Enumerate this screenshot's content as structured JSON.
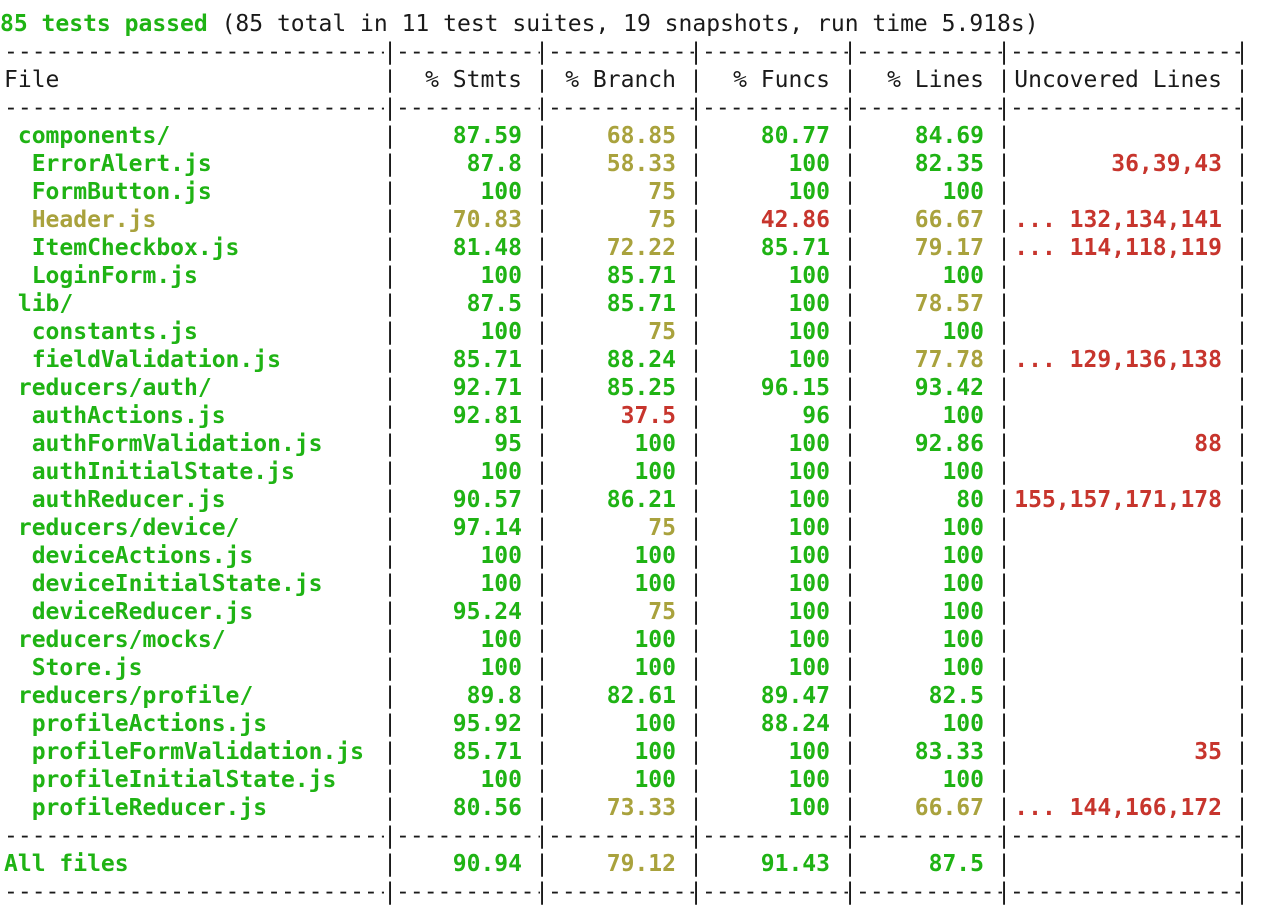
{
  "summary": {
    "passed": "85 tests passed",
    "details": " (85 total in 11 test suites, 19 snapshots, run time 5.918s)"
  },
  "table": {
    "headers": [
      "File",
      "% Stmts",
      "% Branch",
      "% Funcs",
      "% Lines",
      "Uncovered Lines"
    ],
    "rows": [
      {
        "file": " components/",
        "stmts": "87.59",
        "branch": "68.85",
        "funcs": "80.77",
        "lines": "84.69",
        "uncovered": "",
        "c": [
          "green",
          "green",
          "yellow",
          "green",
          "green",
          "red"
        ]
      },
      {
        "file": "  ErrorAlert.js",
        "stmts": "87.8",
        "branch": "58.33",
        "funcs": "100",
        "lines": "82.35",
        "uncovered": "36,39,43",
        "c": [
          "green",
          "green",
          "yellow",
          "green",
          "green",
          "red"
        ]
      },
      {
        "file": "  FormButton.js",
        "stmts": "100",
        "branch": "75",
        "funcs": "100",
        "lines": "100",
        "uncovered": "",
        "c": [
          "green",
          "green",
          "yellow",
          "green",
          "green",
          "red"
        ]
      },
      {
        "file": "  Header.js",
        "stmts": "70.83",
        "branch": "75",
        "funcs": "42.86",
        "lines": "66.67",
        "uncovered": "... 132,134,141",
        "c": [
          "yellow",
          "yellow",
          "yellow",
          "red",
          "yellow",
          "red"
        ]
      },
      {
        "file": "  ItemCheckbox.js",
        "stmts": "81.48",
        "branch": "72.22",
        "funcs": "85.71",
        "lines": "79.17",
        "uncovered": "... 114,118,119",
        "c": [
          "green",
          "green",
          "yellow",
          "green",
          "yellow",
          "red"
        ]
      },
      {
        "file": "  LoginForm.js",
        "stmts": "100",
        "branch": "85.71",
        "funcs": "100",
        "lines": "100",
        "uncovered": "",
        "c": [
          "green",
          "green",
          "green",
          "green",
          "green",
          "red"
        ]
      },
      {
        "file": " lib/",
        "stmts": "87.5",
        "branch": "85.71",
        "funcs": "100",
        "lines": "78.57",
        "uncovered": "",
        "c": [
          "green",
          "green",
          "green",
          "green",
          "yellow",
          "red"
        ]
      },
      {
        "file": "  constants.js",
        "stmts": "100",
        "branch": "75",
        "funcs": "100",
        "lines": "100",
        "uncovered": "",
        "c": [
          "green",
          "green",
          "yellow",
          "green",
          "green",
          "red"
        ]
      },
      {
        "file": "  fieldValidation.js",
        "stmts": "85.71",
        "branch": "88.24",
        "funcs": "100",
        "lines": "77.78",
        "uncovered": "... 129,136,138",
        "c": [
          "green",
          "green",
          "green",
          "green",
          "yellow",
          "red"
        ]
      },
      {
        "file": " reducers/auth/",
        "stmts": "92.71",
        "branch": "85.25",
        "funcs": "96.15",
        "lines": "93.42",
        "uncovered": "",
        "c": [
          "green",
          "green",
          "green",
          "green",
          "green",
          "red"
        ]
      },
      {
        "file": "  authActions.js",
        "stmts": "92.81",
        "branch": "37.5",
        "funcs": "96",
        "lines": "100",
        "uncovered": "",
        "c": [
          "green",
          "green",
          "red",
          "green",
          "green",
          "red"
        ]
      },
      {
        "file": "  authFormValidation.js",
        "stmts": "95",
        "branch": "100",
        "funcs": "100",
        "lines": "92.86",
        "uncovered": "88",
        "c": [
          "green",
          "green",
          "green",
          "green",
          "green",
          "red"
        ]
      },
      {
        "file": "  authInitialState.js",
        "stmts": "100",
        "branch": "100",
        "funcs": "100",
        "lines": "100",
        "uncovered": "",
        "c": [
          "green",
          "green",
          "green",
          "green",
          "green",
          "red"
        ]
      },
      {
        "file": "  authReducer.js",
        "stmts": "90.57",
        "branch": "86.21",
        "funcs": "100",
        "lines": "80",
        "uncovered": "155,157,171,178",
        "c": [
          "green",
          "green",
          "green",
          "green",
          "green",
          "red"
        ]
      },
      {
        "file": " reducers/device/",
        "stmts": "97.14",
        "branch": "75",
        "funcs": "100",
        "lines": "100",
        "uncovered": "",
        "c": [
          "green",
          "green",
          "yellow",
          "green",
          "green",
          "red"
        ]
      },
      {
        "file": "  deviceActions.js",
        "stmts": "100",
        "branch": "100",
        "funcs": "100",
        "lines": "100",
        "uncovered": "",
        "c": [
          "green",
          "green",
          "green",
          "green",
          "green",
          "red"
        ]
      },
      {
        "file": "  deviceInitialState.js",
        "stmts": "100",
        "branch": "100",
        "funcs": "100",
        "lines": "100",
        "uncovered": "",
        "c": [
          "green",
          "green",
          "green",
          "green",
          "green",
          "red"
        ]
      },
      {
        "file": "  deviceReducer.js",
        "stmts": "95.24",
        "branch": "75",
        "funcs": "100",
        "lines": "100",
        "uncovered": "",
        "c": [
          "green",
          "green",
          "yellow",
          "green",
          "green",
          "red"
        ]
      },
      {
        "file": " reducers/mocks/",
        "stmts": "100",
        "branch": "100",
        "funcs": "100",
        "lines": "100",
        "uncovered": "",
        "c": [
          "green",
          "green",
          "green",
          "green",
          "green",
          "red"
        ]
      },
      {
        "file": "  Store.js",
        "stmts": "100",
        "branch": "100",
        "funcs": "100",
        "lines": "100",
        "uncovered": "",
        "c": [
          "green",
          "green",
          "green",
          "green",
          "green",
          "red"
        ]
      },
      {
        "file": " reducers/profile/",
        "stmts": "89.8",
        "branch": "82.61",
        "funcs": "89.47",
        "lines": "82.5",
        "uncovered": "",
        "c": [
          "green",
          "green",
          "green",
          "green",
          "green",
          "red"
        ]
      },
      {
        "file": "  profileActions.js",
        "stmts": "95.92",
        "branch": "100",
        "funcs": "88.24",
        "lines": "100",
        "uncovered": "",
        "c": [
          "green",
          "green",
          "green",
          "green",
          "green",
          "red"
        ]
      },
      {
        "file": "  profileFormValidation.js",
        "stmts": "85.71",
        "branch": "100",
        "funcs": "100",
        "lines": "83.33",
        "uncovered": "35",
        "c": [
          "green",
          "green",
          "green",
          "green",
          "green",
          "red"
        ]
      },
      {
        "file": "  profileInitialState.js",
        "stmts": "100",
        "branch": "100",
        "funcs": "100",
        "lines": "100",
        "uncovered": "",
        "c": [
          "green",
          "green",
          "green",
          "green",
          "green",
          "red"
        ]
      },
      {
        "file": "  profileReducer.js",
        "stmts": "80.56",
        "branch": "73.33",
        "funcs": "100",
        "lines": "66.67",
        "uncovered": "... 144,166,172",
        "c": [
          "green",
          "green",
          "yellow",
          "green",
          "yellow",
          "red"
        ]
      }
    ],
    "total": {
      "file": "All files",
      "stmts": "90.94",
      "branch": "79.12",
      "funcs": "91.43",
      "lines": "87.5",
      "uncovered": "",
      "c": [
        "green",
        "green",
        "yellow",
        "green",
        "green",
        "red"
      ]
    }
  },
  "colors": {
    "green": "#1fb314",
    "yellow": "#a9a23d",
    "red": "#c7352d",
    "text": "#1a1a1a",
    "background": "#ffffff"
  }
}
